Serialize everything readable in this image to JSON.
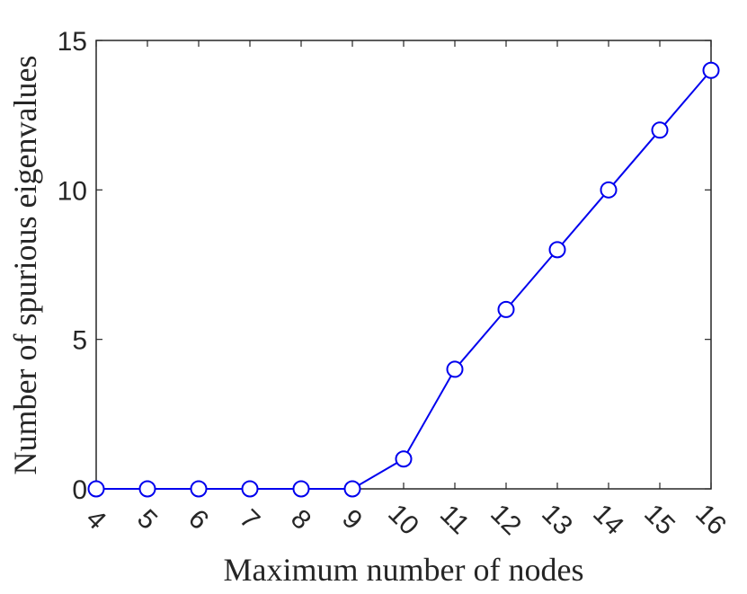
{
  "chart_data": {
    "type": "line",
    "title": "",
    "xlabel": "Maximum number of nodes",
    "ylabel": "Number of spurious eigenvalues",
    "x": [
      4,
      5,
      6,
      7,
      8,
      9,
      10,
      11,
      12,
      13,
      14,
      15,
      16
    ],
    "series": [
      {
        "values": [
          0,
          0,
          0,
          0,
          0,
          0,
          1,
          4,
          6,
          8,
          10,
          12,
          14
        ]
      }
    ],
    "xlim": [
      4,
      16
    ],
    "ylim": [
      0,
      15
    ],
    "xticks": [
      "4",
      "5",
      "6",
      "7",
      "8",
      "9",
      "10",
      "11",
      "12",
      "13",
      "14",
      "15",
      "16"
    ],
    "yticks": [
      "0",
      "5",
      "10",
      "15"
    ],
    "marker": "open-circle",
    "line_color": "#0000ee",
    "axis_color": "#262626",
    "grid": false,
    "legend": "none"
  }
}
